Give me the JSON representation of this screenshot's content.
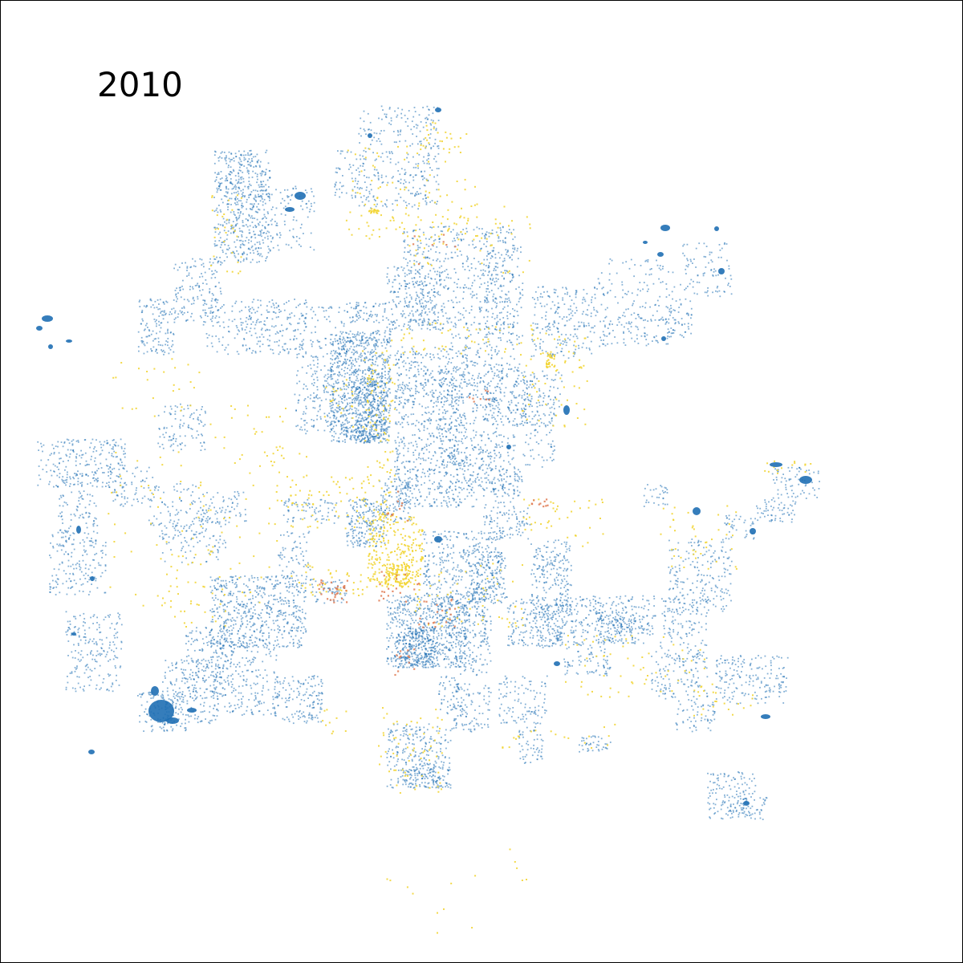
{
  "year_label": "2010",
  "colors": {
    "background": "#ffffff",
    "frame": "#000000",
    "primary_points": "#1f6fb4",
    "secondary_points": "#f2d536",
    "tertiary_points": "#e07b54"
  },
  "legend": []
}
